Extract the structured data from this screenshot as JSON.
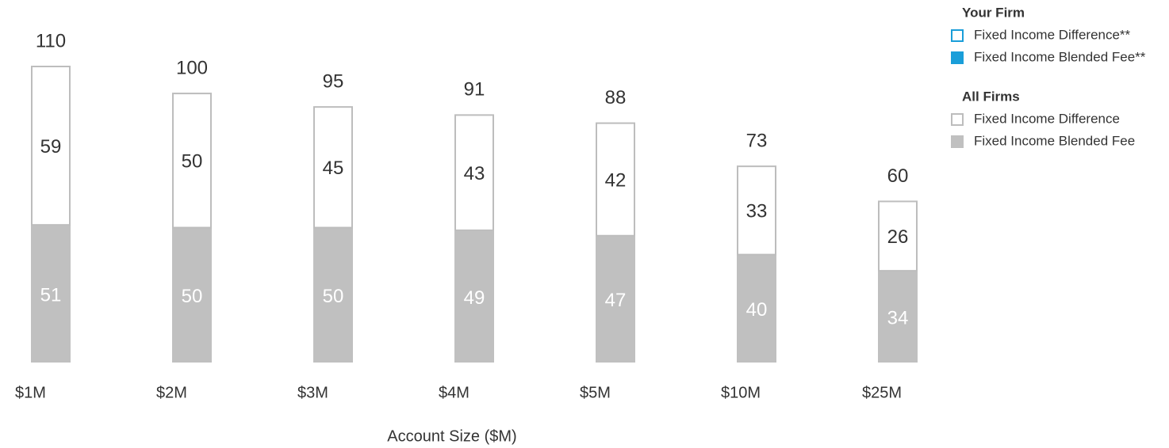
{
  "chart_data": {
    "type": "stacked-bar",
    "x_label": "Account Size ($M)",
    "categories": [
      "$1M",
      "$2M",
      "$3M",
      "$4M",
      "$5M",
      "$10M",
      "$25M"
    ],
    "series": [
      {
        "name": "Fixed Income Blended Fee",
        "color": "#c0c0c0",
        "style": "filled",
        "values": [
          51,
          50,
          50,
          49,
          47,
          40,
          34
        ]
      },
      {
        "name": "Fixed Income Difference",
        "color": "#bdbdbd",
        "style": "outline",
        "values": [
          59,
          50,
          45,
          43,
          42,
          33,
          26
        ]
      }
    ],
    "totals": [
      110,
      100,
      95,
      91,
      88,
      73,
      60
    ],
    "ylim": [
      0,
      110
    ],
    "legend": [
      {
        "title": "Your Firm",
        "entries": [
          {
            "name": "Fixed Income Difference**",
            "color": "#1a9ed9",
            "style": "outline"
          },
          {
            "name": "Fixed Income Blended Fee**",
            "color": "#1a9ed9",
            "style": "filled"
          }
        ]
      },
      {
        "title": "All Firms",
        "entries": [
          {
            "name": "Fixed Income Difference",
            "color": "#bdbdbd",
            "style": "outline"
          },
          {
            "name": "Fixed Income Blended Fee",
            "color": "#c0c0c0",
            "style": "filled"
          }
        ]
      }
    ]
  }
}
